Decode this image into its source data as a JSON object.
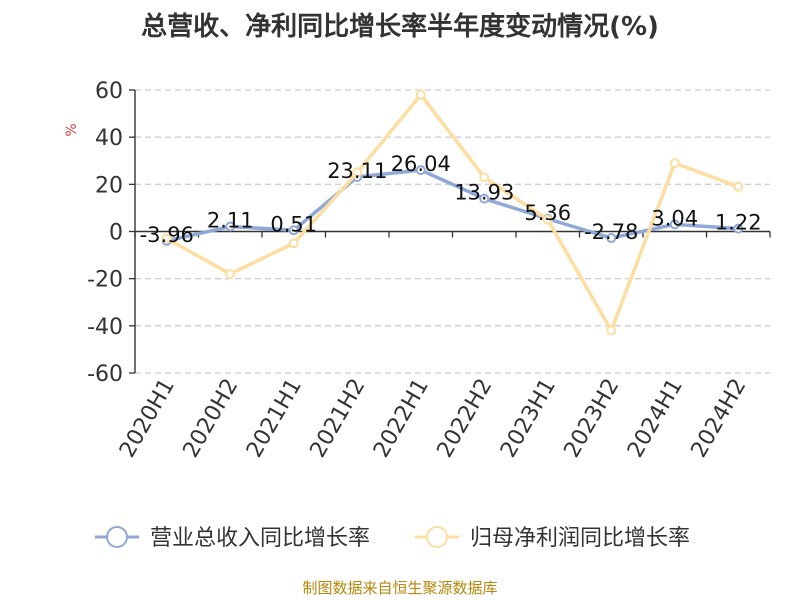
{
  "title": "总营收、净利同比增长率半年度变动情况(%)",
  "source": "制图数据来自恒生聚源数据库",
  "chart_data": {
    "type": "line",
    "title": "总营收、净利同比增长率半年度变动情况(%)",
    "ylabel": "%",
    "xlabel": "",
    "categories": [
      "2020H1",
      "2020H2",
      "2021H1",
      "2021H2",
      "2022H1",
      "2022H2",
      "2023H1",
      "2023H2",
      "2024H1",
      "2024H2"
    ],
    "ylim": [
      -60,
      60
    ],
    "yticks": [
      60,
      40,
      20,
      0,
      -20,
      -40,
      -60
    ],
    "grid": true,
    "legend_position": "bottom",
    "series": [
      {
        "name": "营业总收入同比增长率",
        "color": "#8fa8d8",
        "values": [
          -3.96,
          2.11,
          0.51,
          23.11,
          26.04,
          13.93,
          5.36,
          -2.78,
          3.04,
          1.22
        ],
        "labels": [
          "-3.96",
          "2.11",
          "0.51",
          "23.11",
          "26.04",
          "13.93",
          "5.36",
          "-2.78",
          "3.04",
          "1.22"
        ]
      },
      {
        "name": "归母净利润同比增长率",
        "color": "#fddea0",
        "values": [
          -3,
          -18,
          -5,
          25,
          58,
          23,
          5,
          -42,
          29,
          19
        ]
      }
    ]
  }
}
